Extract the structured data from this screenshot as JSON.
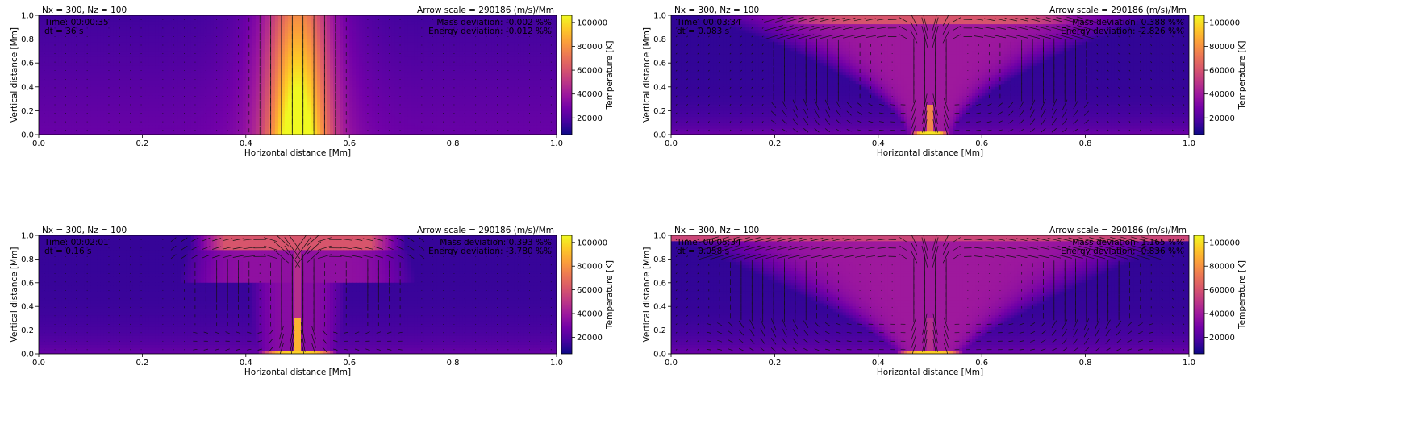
{
  "figure": {
    "colorscale": [
      "#0d0887",
      "#46039f",
      "#7201a8",
      "#9c179e",
      "#bd3786",
      "#d8576b",
      "#ed7953",
      "#fb9f3a",
      "#fdca26",
      "#f0f921"
    ]
  },
  "chart_data": [
    {
      "type": "heatmap",
      "grid_label": "Nx = 300, Nz = 100",
      "arrow_scale": "Arrow scale = 290186 (m/s)/Mm",
      "time": "Time: 00:00:35",
      "dt": "dt = 36 s",
      "mass_deviation": "Mass deviation: -0.002 %%",
      "energy_deviation": "Energy deviation: -0.012 %%",
      "xlabel": "Horizontal distance [Mm]",
      "ylabel": "Vertical distance [Mm]",
      "xlim": [
        0,
        1
      ],
      "ylim": [
        0,
        1
      ],
      "xticks": [
        "0.0",
        "0.2",
        "0.4",
        "0.6",
        "0.8",
        "1.0"
      ],
      "yticks": [
        "0.0",
        "0.2",
        "0.4",
        "0.6",
        "0.8",
        "1.0"
      ],
      "colorbar_label": "Temperature [K]",
      "colorbar_ticks": [
        20000,
        40000,
        60000,
        80000,
        100000
      ],
      "colorbar_range": [
        6000,
        106000
      ],
      "phase": 0
    },
    {
      "type": "heatmap",
      "grid_label": "Nx = 300, Nz = 100",
      "arrow_scale": "Arrow scale = 290186 (m/s)/Mm",
      "time": "Time: 00:03:34",
      "dt": "dt = 0.083 s",
      "mass_deviation": "Mass deviation: 0.388 %%",
      "energy_deviation": "Energy deviation: -2.826 %%",
      "xlabel": "Horizontal distance [Mm]",
      "ylabel": "Vertical distance [Mm]",
      "xlim": [
        0,
        1
      ],
      "ylim": [
        0,
        1
      ],
      "xticks": [
        "0.0",
        "0.2",
        "0.4",
        "0.6",
        "0.8",
        "1.0"
      ],
      "yticks": [
        "0.0",
        "0.2",
        "0.4",
        "0.6",
        "0.8",
        "1.0"
      ],
      "colorbar_label": "Temperature [K]",
      "colorbar_ticks": [
        20000,
        40000,
        60000,
        80000,
        100000
      ],
      "colorbar_range": [
        6000,
        106000
      ],
      "phase": 2
    },
    {
      "type": "heatmap",
      "grid_label": "Nx = 300, Nz = 100",
      "arrow_scale": "Arrow scale = 290186 (m/s)/Mm",
      "time": "Time: 00:02:01",
      "dt": "dt = 0.16 s",
      "mass_deviation": "Mass deviation: 0.393 %%",
      "energy_deviation": "Energy deviation: -3.780 %%",
      "xlabel": "Horizontal distance [Mm]",
      "ylabel": "Vertical distance [Mm]",
      "xlim": [
        0,
        1
      ],
      "ylim": [
        0,
        1
      ],
      "xticks": [
        "0.0",
        "0.2",
        "0.4",
        "0.6",
        "0.8",
        "1.0"
      ],
      "yticks": [
        "0.0",
        "0.2",
        "0.4",
        "0.6",
        "0.8",
        "1.0"
      ],
      "colorbar_label": "Temperature [K]",
      "colorbar_ticks": [
        20000,
        40000,
        60000,
        80000,
        100000
      ],
      "colorbar_range": [
        6000,
        106000
      ],
      "phase": 1
    },
    {
      "type": "heatmap",
      "grid_label": "Nx = 300, Nz = 100",
      "arrow_scale": "Arrow scale = 290186 (m/s)/Mm",
      "time": "Time: 00:05:34",
      "dt": "dt = 0.058 s",
      "mass_deviation": "Mass deviation: 1.165 %%",
      "energy_deviation": "Energy deviation: -0.836 %%",
      "xlabel": "Horizontal distance [Mm]",
      "ylabel": "Vertical distance [Mm]",
      "xlim": [
        0,
        1
      ],
      "ylim": [
        0,
        1
      ],
      "xticks": [
        "0.0",
        "0.2",
        "0.4",
        "0.6",
        "0.8",
        "1.0"
      ],
      "yticks": [
        "0.0",
        "0.2",
        "0.4",
        "0.6",
        "0.8",
        "1.0"
      ],
      "colorbar_label": "Temperature [K]",
      "colorbar_ticks": [
        20000,
        40000,
        60000,
        80000,
        100000
      ],
      "colorbar_range": [
        6000,
        106000
      ],
      "phase": 3
    }
  ]
}
